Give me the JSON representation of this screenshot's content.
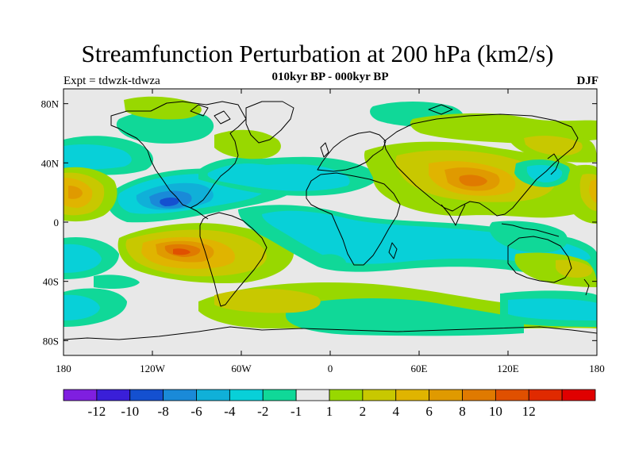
{
  "title": "Streamfunction Perturbation at 200 hPa (km2/s)",
  "subtitle_left": "Expt = tdwzk-tdwza",
  "subtitle_center": "010kyr BP - 000kyr BP",
  "subtitle_right": "DJF",
  "map": {
    "projection": "cylindrical-equidistant",
    "lon_range": [
      -180,
      180
    ],
    "lat_range": [
      -90,
      90
    ],
    "lat_ticks": [
      {
        "value": 80,
        "label": "80N"
      },
      {
        "value": 40,
        "label": "40N"
      },
      {
        "value": 0,
        "label": "0"
      },
      {
        "value": -40,
        "label": "40S"
      },
      {
        "value": -80,
        "label": "80S"
      }
    ],
    "lon_ticks": [
      {
        "value": -180,
        "label": "180"
      },
      {
        "value": -120,
        "label": "120W"
      },
      {
        "value": -60,
        "label": "60W"
      },
      {
        "value": 0,
        "label": "0"
      },
      {
        "value": 60,
        "label": "60E"
      },
      {
        "value": 120,
        "label": "120E"
      },
      {
        "value": 180,
        "label": "180"
      }
    ],
    "coastline_color": "#000000"
  },
  "colorbar": {
    "colors": [
      "#7f1fe0",
      "#3a1fd8",
      "#1450d0",
      "#1a8ad8",
      "#10b0d8",
      "#08d0d8",
      "#10d898",
      "#e8e8e8",
      "#98d800",
      "#c8c800",
      "#e0b400",
      "#e09a00",
      "#e07a00",
      "#e05000",
      "#e02a00",
      "#e00000"
    ],
    "labels": [
      "-12",
      "-10",
      "-8",
      "-6",
      "-4",
      "-2",
      "-1",
      "1",
      "2",
      "4",
      "6",
      "8",
      "10",
      "12"
    ]
  }
}
